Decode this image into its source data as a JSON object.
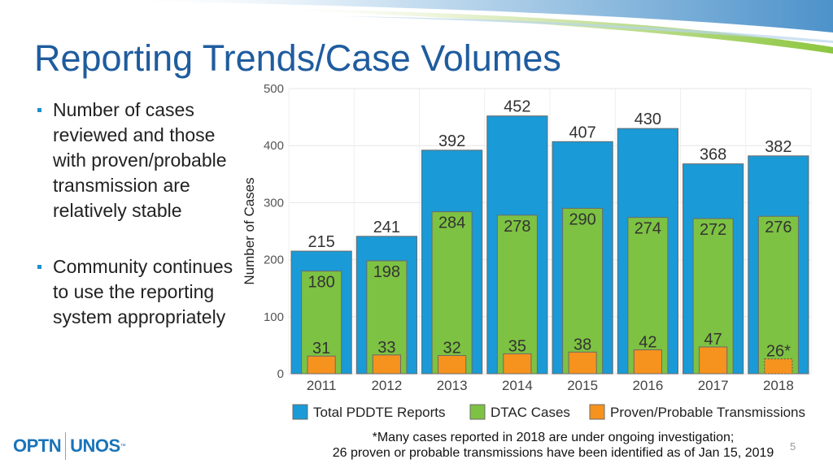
{
  "slide": {
    "title": "Reporting Trends/Case Volumes",
    "bullets": [
      "Number of cases reviewed and those with proven/probable transmission are relatively stable",
      "Community continues to use the reporting system appropriately"
    ],
    "footnote_line1": "*Many cases reported in 2018 are under ongoing investigation;",
    "footnote_line2": "26 proven or probable transmissions have been identified as of Jan 15, 2019",
    "page_number": "5",
    "logo": {
      "left": "OPTN",
      "right": "UNOS",
      "tm": "™"
    }
  },
  "colors": {
    "total": "#1a9ad6",
    "dtac": "#7dc242",
    "proven": "#f6921e",
    "title": "#1f5c9e"
  },
  "chart_data": {
    "type": "bar",
    "title": "",
    "xlabel": "",
    "ylabel": "Number of Cases",
    "ylim": [
      0,
      500
    ],
    "yticks": [
      0,
      100,
      200,
      300,
      400,
      500
    ],
    "categories": [
      "2011",
      "2012",
      "2013",
      "2014",
      "2015",
      "2016",
      "2017",
      "2018"
    ],
    "series": [
      {
        "name": "Total PDDTE Reports",
        "values": [
          215,
          241,
          392,
          452,
          407,
          430,
          368,
          382
        ],
        "labels": [
          "215",
          "241",
          "392",
          "452",
          "407",
          "430",
          "368",
          "382"
        ]
      },
      {
        "name": "DTAC Cases",
        "values": [
          180,
          198,
          284,
          278,
          290,
          274,
          272,
          276
        ],
        "labels": [
          "180",
          "198",
          "284",
          "278",
          "290",
          "274",
          "272",
          "276"
        ]
      },
      {
        "name": "Proven/Probable Transmissions",
        "values": [
          31,
          33,
          32,
          35,
          38,
          42,
          47,
          26
        ],
        "labels": [
          "31",
          "33",
          "32",
          "35",
          "38",
          "42",
          "47",
          "26*"
        ]
      }
    ],
    "legend": "bottom",
    "grid": true
  }
}
